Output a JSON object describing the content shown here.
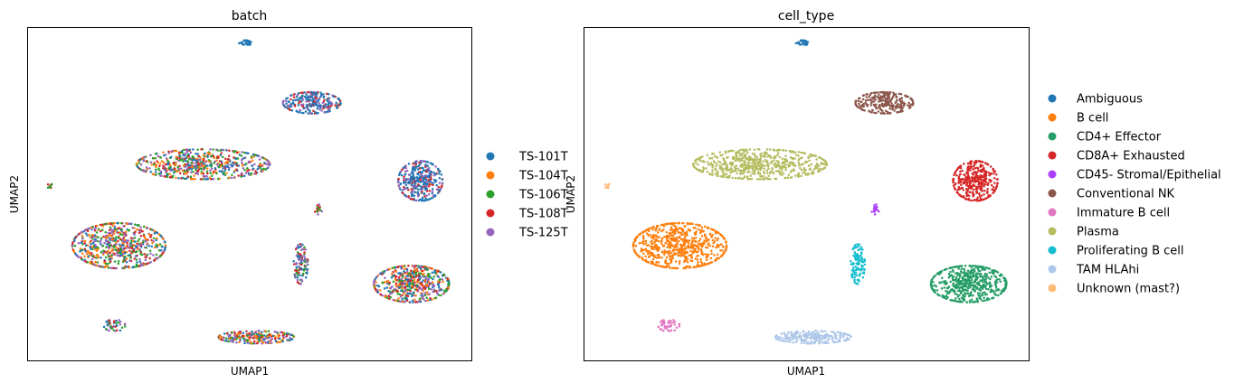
{
  "chart_data": [
    {
      "type": "scatter",
      "title": "batch",
      "xlabel": "UMAP1",
      "ylabel": "UMAP2",
      "xlim": [
        0,
        100
      ],
      "ylim": [
        0,
        100
      ],
      "grid": false,
      "legend_placement": "right",
      "legend": [
        {
          "label": "TS-101T",
          "color": "#1f77b4"
        },
        {
          "label": "TS-104T",
          "color": "#ff7f0e"
        },
        {
          "label": "TS-106T",
          "color": "#2ca02c"
        },
        {
          "label": "TS-108T",
          "color": "#d62728"
        },
        {
          "label": "TS-125T",
          "color": "#9467bd"
        }
      ],
      "clusters": [
        {
          "x": 49.0,
          "y": 95.5,
          "rx": 1.4,
          "ry": 0.8,
          "n": 25,
          "colors": [
            "#1f77b4"
          ]
        },
        {
          "x": 64.0,
          "y": 77.5,
          "rx": 6.5,
          "ry": 3.2,
          "n": 260,
          "colors": [
            "#1f77b4",
            "#1f77b4",
            "#1f77b4",
            "#d62728",
            "#9467bd"
          ]
        },
        {
          "x": 39.5,
          "y": 59.0,
          "rx": 15.0,
          "ry": 4.5,
          "n": 620,
          "colors": [
            "#1f77b4",
            "#ff7f0e",
            "#2ca02c",
            "#d62728",
            "#9467bd"
          ]
        },
        {
          "x": 88.5,
          "y": 54.0,
          "rx": 5.0,
          "ry": 6.0,
          "n": 360,
          "colors": [
            "#1f77b4",
            "#1f77b4",
            "#1f77b4",
            "#9467bd",
            "#d62728"
          ]
        },
        {
          "x": 5.0,
          "y": 52.5,
          "rx": 0.9,
          "ry": 0.6,
          "n": 10,
          "colors": [
            "#d62728",
            "#2ca02c"
          ]
        },
        {
          "x": 65.5,
          "y": 45.5,
          "rx": 0.9,
          "ry": 1.6,
          "n": 18,
          "colors": [
            "#2ca02c",
            "#d62728",
            "#9467bd"
          ]
        },
        {
          "x": 20.5,
          "y": 34.5,
          "rx": 10.5,
          "ry": 6.8,
          "n": 700,
          "colors": [
            "#ff7f0e",
            "#2ca02c",
            "#d62728",
            "#1f77b4",
            "#9467bd"
          ]
        },
        {
          "x": 61.5,
          "y": 29.0,
          "rx": 1.6,
          "ry": 6.0,
          "n": 110,
          "colors": [
            "#1f77b4",
            "#2ca02c",
            "#9467bd",
            "#d62728"
          ]
        },
        {
          "x": 86.5,
          "y": 23.0,
          "rx": 8.5,
          "ry": 5.5,
          "n": 560,
          "colors": [
            "#d62728",
            "#2ca02c",
            "#1f77b4",
            "#9467bd",
            "#ff7f0e"
          ]
        },
        {
          "x": 19.5,
          "y": 10.5,
          "rx": 2.4,
          "ry": 1.8,
          "n": 50,
          "colors": [
            "#2ca02c",
            "#d62728",
            "#9467bd",
            "#1f77b4"
          ]
        },
        {
          "x": 51.5,
          "y": 7.0,
          "rx": 8.5,
          "ry": 1.9,
          "n": 260,
          "colors": [
            "#d62728",
            "#2ca02c",
            "#1f77b4",
            "#ff7f0e",
            "#9467bd"
          ]
        }
      ]
    },
    {
      "type": "scatter",
      "title": "cell_type",
      "xlabel": "UMAP1",
      "ylabel": "UMAP2",
      "xlim": [
        0,
        100
      ],
      "ylim": [
        0,
        100
      ],
      "grid": false,
      "legend_placement": "right",
      "legend": [
        {
          "label": "Ambiguous",
          "color": "#1f77b4"
        },
        {
          "label": "B cell",
          "color": "#ff7f0e"
        },
        {
          "label": "CD4+ Effector",
          "color": "#279e68"
        },
        {
          "label": "CD8A+ Exhausted",
          "color": "#d62728"
        },
        {
          "label": "CD45- Stromal/Epithelial",
          "color": "#aa40fc"
        },
        {
          "label": "Conventional NK",
          "color": "#8c564b"
        },
        {
          "label": "Immature B cell",
          "color": "#e377c2"
        },
        {
          "label": "Plasma",
          "color": "#b5bd61"
        },
        {
          "label": "Proliferating B cell",
          "color": "#17becf"
        },
        {
          "label": "TAM HLAhi",
          "color": "#aec7e8"
        },
        {
          "label": "Unknown (mast?)",
          "color": "#ffbb78"
        }
      ],
      "clusters": [
        {
          "x": 49.0,
          "y": 95.5,
          "rx": 1.4,
          "ry": 0.8,
          "n": 25,
          "colors": [
            "#1f77b4"
          ]
        },
        {
          "x": 67.5,
          "y": 77.5,
          "rx": 6.5,
          "ry": 3.2,
          "n": 260,
          "colors": [
            "#8c564b"
          ]
        },
        {
          "x": 39.5,
          "y": 59.0,
          "rx": 15.0,
          "ry": 4.5,
          "n": 620,
          "colors": [
            "#b5bd61"
          ]
        },
        {
          "x": 88.0,
          "y": 54.0,
          "rx": 5.0,
          "ry": 6.0,
          "n": 360,
          "colors": [
            "#d62728"
          ]
        },
        {
          "x": 5.2,
          "y": 52.5,
          "rx": 0.9,
          "ry": 0.6,
          "n": 10,
          "colors": [
            "#ffbb78"
          ]
        },
        {
          "x": 65.5,
          "y": 45.5,
          "rx": 0.9,
          "ry": 1.6,
          "n": 18,
          "colors": [
            "#aa40fc"
          ]
        },
        {
          "x": 21.5,
          "y": 34.5,
          "rx": 10.5,
          "ry": 6.8,
          "n": 700,
          "colors": [
            "#ff7f0e"
          ]
        },
        {
          "x": 61.5,
          "y": 29.0,
          "rx": 1.6,
          "ry": 6.0,
          "n": 110,
          "colors": [
            "#17becf"
          ]
        },
        {
          "x": 86.5,
          "y": 23.0,
          "rx": 8.5,
          "ry": 5.5,
          "n": 560,
          "colors": [
            "#279e68"
          ]
        },
        {
          "x": 19.0,
          "y": 10.5,
          "rx": 2.4,
          "ry": 1.8,
          "n": 50,
          "colors": [
            "#e377c2"
          ]
        },
        {
          "x": 51.5,
          "y": 7.0,
          "rx": 8.5,
          "ry": 1.9,
          "n": 260,
          "colors": [
            "#aec7e8"
          ]
        }
      ]
    }
  ]
}
